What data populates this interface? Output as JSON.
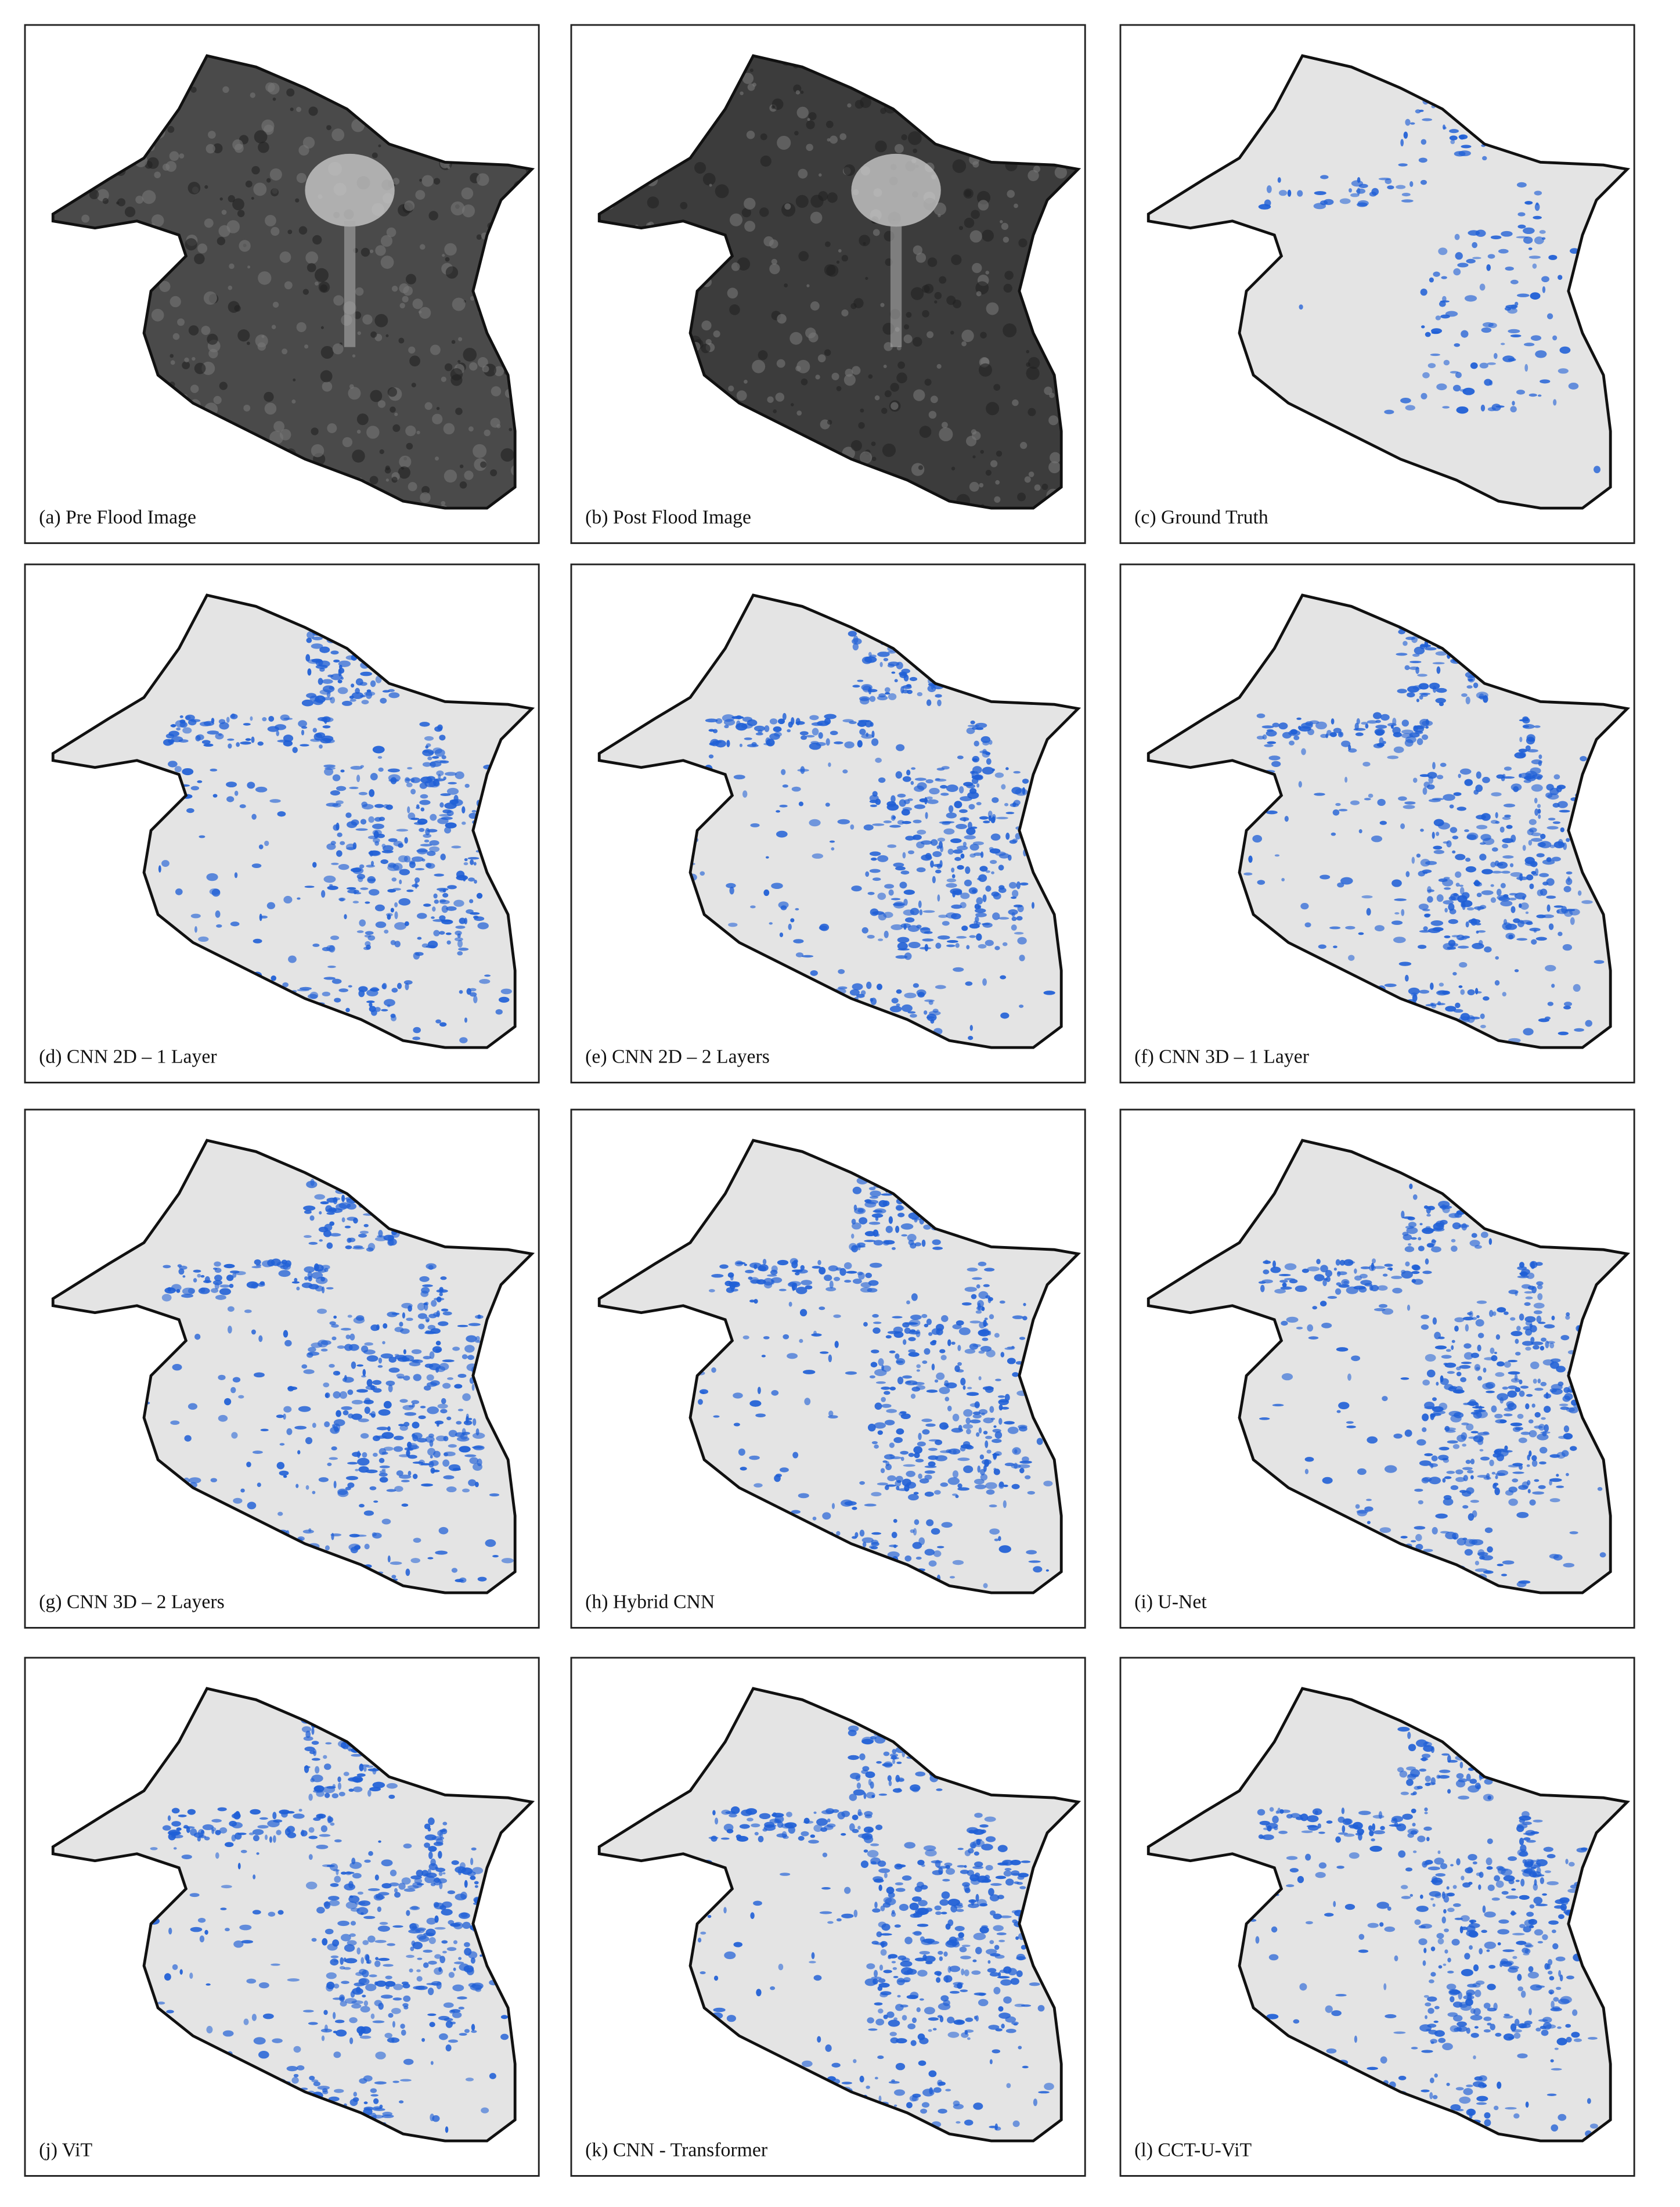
{
  "panels": [
    {
      "label": "(a) Pre Flood Image"
    },
    {
      "label": "(b) Post Flood Image"
    },
    {
      "label": "(c) Ground Truth"
    },
    {
      "label": "(d) CNN 2D – 1 Layer"
    },
    {
      "label": "(e) CNN 2D – 2 Layers"
    },
    {
      "label": "(f) CNN 3D – 1 Layer"
    },
    {
      "label": "(g) CNN 3D – 2 Layers"
    },
    {
      "label": "(h) Hybrid CNN"
    },
    {
      "label": "(i) U-Net"
    },
    {
      "label": "(j) ViT"
    },
    {
      "label": "(k) CNN - Transformer"
    },
    {
      "label": "(l) CCT-U-ViT"
    }
  ]
}
